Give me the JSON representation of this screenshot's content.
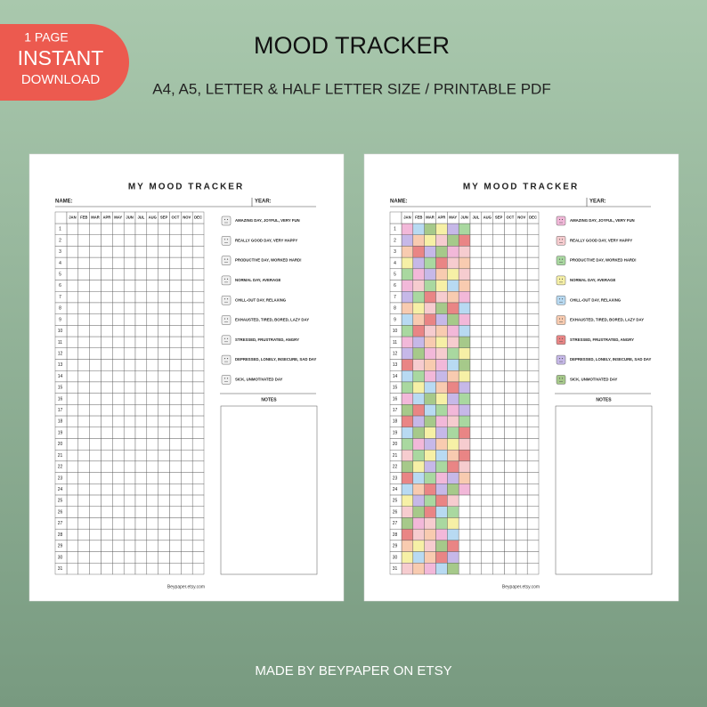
{
  "badge": {
    "lines": [
      "1 PAGE",
      "INSTANT",
      "DOWNLOAD"
    ]
  },
  "header": {
    "title": "MOOD TRACKER",
    "subtitle": "A4, A5, LETTER & HALF LETTER SIZE / PRINTABLE PDF"
  },
  "pages": [
    {
      "title": "MY MOOD TRACKER",
      "name_label": "NAME:",
      "year_label": "YEAR:",
      "months": [
        "JAN",
        "FEB",
        "MAR",
        "APR",
        "MAY",
        "JUN",
        "JUL",
        "AUG",
        "SEP",
        "OCT",
        "NOV",
        "DEC"
      ],
      "days": [
        1,
        2,
        3,
        4,
        5,
        6,
        7,
        8,
        9,
        10,
        11,
        12,
        13,
        14,
        15,
        16,
        17,
        18,
        19,
        20,
        21,
        22,
        23,
        24,
        25,
        26,
        27,
        28,
        29,
        30,
        31
      ],
      "legend": [
        {
          "label": "AMAZING DAY, JOYFUL, VERY FUN",
          "color": "#f0f0f0"
        },
        {
          "label": "REALLY GOOD DAY, VERY HAPPY",
          "color": "#f0f0f0"
        },
        {
          "label": "PRODUCTIVE DAY, WORKED HARD!",
          "color": "#f0f0f0"
        },
        {
          "label": "NORMAL DAY, AVERAGE",
          "color": "#f0f0f0"
        },
        {
          "label": "CHILL-OUT DAY, RELAXING",
          "color": "#f0f0f0"
        },
        {
          "label": "EXHAUSTED, TIRED, BORED, LAZY DAY",
          "color": "#f0f0f0"
        },
        {
          "label": "STRESSED, FRUSTRATED, ANGRY",
          "color": "#f0f0f0"
        },
        {
          "label": "DEPRESSED, LONELY, INSECURE, SAD DAY",
          "color": "#f0f0f0"
        },
        {
          "label": "SICK, UNMOTIVATED DAY",
          "color": "#f0f0f0"
        }
      ],
      "notes": "NOTES",
      "footer": "Beypaper.etsy.com"
    },
    {
      "title": "MY MOOD TRACKER",
      "name_label": "NAME:",
      "year_label": "YEAR:",
      "months": [
        "JAN",
        "FEB",
        "MAR",
        "APR",
        "MAY",
        "JUN",
        "JUL",
        "AUG",
        "SEP",
        "OCT",
        "NOV",
        "DEC"
      ],
      "days": [
        1,
        2,
        3,
        4,
        5,
        6,
        7,
        8,
        9,
        10,
        11,
        12,
        13,
        14,
        15,
        16,
        17,
        18,
        19,
        20,
        21,
        22,
        23,
        24,
        25,
        26,
        27,
        28,
        29,
        30,
        31
      ],
      "legend": [
        {
          "label": "AMAZING DAY, JOYFUL, VERY FUN",
          "color": "#f2b8d9"
        },
        {
          "label": "REALLY GOOD DAY, VERY HAPPY",
          "color": "#f6cccf"
        },
        {
          "label": "PRODUCTIVE DAY, WORKED HARD!",
          "color": "#a9d8a0"
        },
        {
          "label": "NORMAL DAY, AVERAGE",
          "color": "#f6f0a6"
        },
        {
          "label": "CHILL-OUT DAY, RELAXING",
          "color": "#b8daf2"
        },
        {
          "label": "EXHAUSTED, TIRED, BORED, LAZY DAY",
          "color": "#f8cbb0"
        },
        {
          "label": "STRESSED, FRUSTRATED, ANGRY",
          "color": "#e98585"
        },
        {
          "label": "DEPRESSED, LONELY, INSECURE, SAD DAY",
          "color": "#c6b8e8"
        },
        {
          "label": "SICK, UNMOTIVATED DAY",
          "color": "#a6c98a"
        }
      ],
      "notes": "NOTES",
      "footer": "Beypaper.etsy.com"
    }
  ],
  "footer": "MADE BY BEYPAPER ON ETSY"
}
